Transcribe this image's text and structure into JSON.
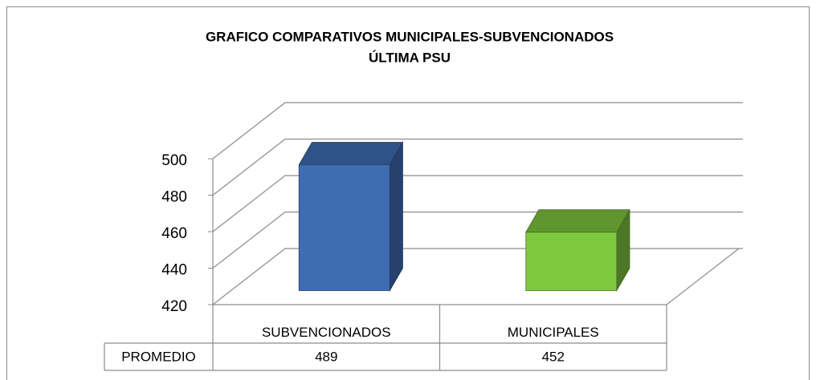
{
  "chart_data": {
    "type": "bar3d",
    "title": "GRAFICO  COMPARATIVOS  MUNICIPALES-SUBVENCIONADOS",
    "subtitle": "ÚLTIMA PSU",
    "categories": [
      "SUBVENCIONADOS",
      "MUNICIPALES"
    ],
    "series": [
      {
        "name": "PROMEDIO",
        "colors": [
          "#3f6db4",
          "#7ec83e"
        ],
        "values": [
          489,
          452
        ]
      }
    ],
    "ylim": [
      420,
      500
    ],
    "yticks": [
      420,
      440,
      460,
      480,
      500
    ],
    "grid": true,
    "data_table": true
  }
}
